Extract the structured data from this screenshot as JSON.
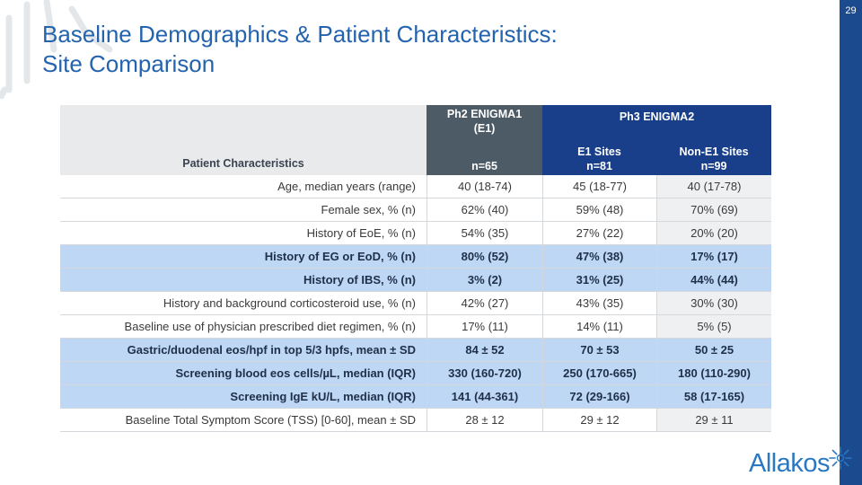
{
  "header": {
    "page_number": "29",
    "title": [
      "Baseline Demographics & Patient Characteristics:",
      "Site Comparison"
    ]
  },
  "table": {
    "header": {
      "characteristics": "Patient Characteristics",
      "enigma1": [
        "Ph2 ENIGMA1",
        "(E1)"
      ],
      "enigma1_n": "n=65",
      "enigma2": "Ph3 ENIGMA2",
      "e1_sites": "E1 Sites",
      "e1_sites_n": "n=81",
      "non_e1_sites": "Non-E1 Sites",
      "non_e1_sites_n": "n=99"
    },
    "rows": [
      {
        "cells": [
          "Age, median years (range)",
          "40 (18-74)",
          "45 (18-77)",
          "40 (17-78)"
        ],
        "highlight": false
      },
      {
        "cells": [
          "Female sex, % (n)",
          "62% (40)",
          "59% (48)",
          "70% (69)"
        ],
        "highlight": false
      },
      {
        "cells": [
          "History of EoE, % (n)",
          "54% (35)",
          "27% (22)",
          "20% (20)"
        ],
        "highlight": false
      },
      {
        "cells": [
          "History of EG or EoD, % (n)",
          "80% (52)",
          "47% (38)",
          "17% (17)"
        ],
        "highlight": true
      },
      {
        "cells": [
          "History of IBS, % (n)",
          "3% (2)",
          "31% (25)",
          "44% (44)"
        ],
        "highlight": true
      },
      {
        "cells": [
          "History and background corticosteroid use, % (n)",
          "42% (27)",
          "43% (35)",
          "30% (30)"
        ],
        "highlight": false
      },
      {
        "cells": [
          "Baseline use of physician prescribed diet regimen, % (n)",
          "17% (11)",
          "14% (11)",
          "5% (5)"
        ],
        "highlight": false
      },
      {
        "cells": [
          "Gastric/duodenal eos/hpf in top 5/3 hpfs, mean ± SD",
          "84 ± 52",
          "70 ± 53",
          "50 ± 25"
        ],
        "highlight": true
      },
      {
        "cells": [
          "Screening blood eos cells/µL, median (IQR)",
          "330 (160-720)",
          "250 (170-665)",
          "180 (110-290)"
        ],
        "highlight": true
      },
      {
        "cells": [
          "Screening IgE kU/L, median (IQR)",
          "141 (44-361)",
          "72 (29-166)",
          "58 (17-165)"
        ],
        "highlight": true
      },
      {
        "cells": [
          "Baseline Total Symptom Score (TSS) [0-60], mean ± SD",
          "28 ± 12",
          "29 ± 12",
          "29 ± 11"
        ],
        "highlight": false
      }
    ]
  },
  "logo": "Allakos"
}
